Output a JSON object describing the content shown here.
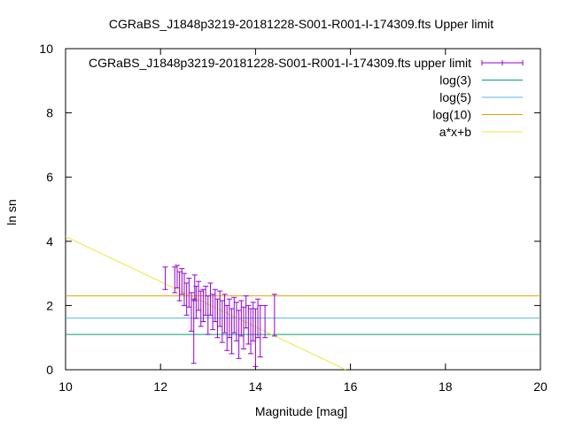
{
  "chart_data": {
    "type": "scatter",
    "title": "CGRaBS_J1848p3219-20181228-S001-R001-I-174309.fts Upper limit",
    "xlabel": "Magnitude [mag]",
    "ylabel": "ln sn",
    "xlim": [
      10,
      20
    ],
    "ylim": [
      0,
      10
    ],
    "xticks": [
      10,
      12,
      14,
      16,
      18,
      20
    ],
    "yticks": [
      0,
      2,
      4,
      6,
      8,
      10
    ],
    "legend_position": "top-right",
    "grid": false,
    "series": [
      {
        "name": "CGRaBS_J1848p3219-20181228-S001-R001-I-174309.fts upper limit",
        "kind": "errorbars",
        "color": "#9400d3",
        "points": [
          {
            "x": 12.1,
            "y": 2.85,
            "err": 0.35
          },
          {
            "x": 12.3,
            "y": 2.8,
            "err": 0.4
          },
          {
            "x": 12.35,
            "y": 2.9,
            "err": 0.35
          },
          {
            "x": 12.4,
            "y": 2.6,
            "err": 0.45
          },
          {
            "x": 12.45,
            "y": 2.75,
            "err": 0.4
          },
          {
            "x": 12.5,
            "y": 2.5,
            "err": 0.5
          },
          {
            "x": 12.55,
            "y": 2.2,
            "err": 0.5
          },
          {
            "x": 12.6,
            "y": 2.4,
            "err": 0.45
          },
          {
            "x": 12.65,
            "y": 1.8,
            "err": 0.6
          },
          {
            "x": 12.7,
            "y": 1.2,
            "err": 1.0
          },
          {
            "x": 12.72,
            "y": 2.55,
            "err": 0.4
          },
          {
            "x": 12.75,
            "y": 2.1,
            "err": 0.5
          },
          {
            "x": 12.8,
            "y": 2.3,
            "err": 0.45
          },
          {
            "x": 12.85,
            "y": 1.9,
            "err": 0.55
          },
          {
            "x": 12.9,
            "y": 2.0,
            "err": 0.5
          },
          {
            "x": 12.95,
            "y": 2.15,
            "err": 0.45
          },
          {
            "x": 13.0,
            "y": 1.7,
            "err": 0.6
          },
          {
            "x": 13.05,
            "y": 2.2,
            "err": 0.5
          },
          {
            "x": 13.1,
            "y": 1.8,
            "err": 0.55
          },
          {
            "x": 13.15,
            "y": 2.0,
            "err": 0.5
          },
          {
            "x": 13.2,
            "y": 1.6,
            "err": 0.6
          },
          {
            "x": 13.25,
            "y": 1.9,
            "err": 0.55
          },
          {
            "x": 13.3,
            "y": 1.5,
            "err": 0.65
          },
          {
            "x": 13.35,
            "y": 1.75,
            "err": 0.6
          },
          {
            "x": 13.4,
            "y": 1.3,
            "err": 0.7
          },
          {
            "x": 13.45,
            "y": 1.6,
            "err": 0.6
          },
          {
            "x": 13.5,
            "y": 1.2,
            "err": 0.7
          },
          {
            "x": 13.55,
            "y": 1.7,
            "err": 0.55
          },
          {
            "x": 13.6,
            "y": 1.5,
            "err": 0.6
          },
          {
            "x": 13.65,
            "y": 1.1,
            "err": 0.75
          },
          {
            "x": 13.7,
            "y": 1.6,
            "err": 0.55
          },
          {
            "x": 13.75,
            "y": 1.3,
            "err": 0.65
          },
          {
            "x": 13.8,
            "y": 1.8,
            "err": 0.5
          },
          {
            "x": 13.85,
            "y": 1.4,
            "err": 0.6
          },
          {
            "x": 13.9,
            "y": 1.2,
            "err": 0.7
          },
          {
            "x": 13.95,
            "y": 1.5,
            "err": 0.6
          },
          {
            "x": 14.0,
            "y": 1.0,
            "err": 0.9
          },
          {
            "x": 14.05,
            "y": 1.6,
            "err": 0.6
          },
          {
            "x": 14.1,
            "y": 1.2,
            "err": 0.8
          },
          {
            "x": 14.2,
            "y": 1.5,
            "err": 0.5
          },
          {
            "x": 14.4,
            "y": 1.7,
            "err": 0.65
          }
        ]
      },
      {
        "name": "log(3)",
        "kind": "hline",
        "y": 1.0986,
        "color": "#009e73"
      },
      {
        "name": "log(5)",
        "kind": "hline",
        "y": 1.6094,
        "color": "#56b4e9"
      },
      {
        "name": "log(10)",
        "kind": "hline",
        "y": 2.3026,
        "color": "#e69f00"
      },
      {
        "name": "a*x+b",
        "kind": "line",
        "x": [
          10,
          15.9
        ],
        "y": [
          4.15,
          0
        ],
        "color": "#f0e442"
      }
    ]
  }
}
